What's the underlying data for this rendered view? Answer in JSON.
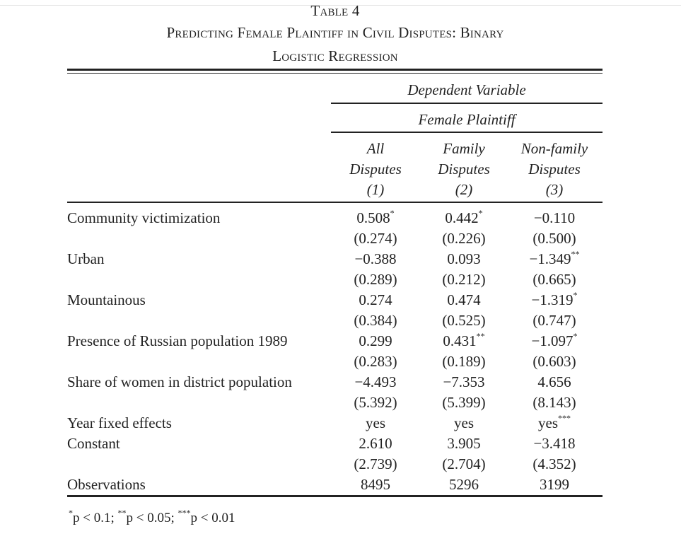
{
  "table": {
    "label": "Table 4",
    "title_line1": "Predicting Female Plaintiff in Civil Disputes: Binary",
    "title_line2": "Logistic Regression",
    "dependent_variable_label": "Dependent Variable",
    "dependent_variable": "Female Plaintiff",
    "columns": [
      {
        "line1": "All",
        "line2": "Disputes",
        "number": "(1)"
      },
      {
        "line1": "Family",
        "line2": "Disputes",
        "number": "(2)"
      },
      {
        "line1": "Non-family",
        "line2": "Disputes",
        "number": "(3)"
      }
    ],
    "rows": [
      {
        "label": "Community victimization",
        "coef": [
          {
            "v": "0.508",
            "stars": "*"
          },
          {
            "v": "0.442",
            "stars": "*"
          },
          {
            "v": "−0.110",
            "stars": ""
          }
        ],
        "se": [
          "(0.274)",
          "(0.226)",
          "(0.500)"
        ]
      },
      {
        "label": "Urban",
        "coef": [
          {
            "v": "−0.388",
            "stars": ""
          },
          {
            "v": "0.093",
            "stars": ""
          },
          {
            "v": "−1.349",
            "stars": "**"
          }
        ],
        "se": [
          "(0.289)",
          "(0.212)",
          "(0.665)"
        ]
      },
      {
        "label": "Mountainous",
        "coef": [
          {
            "v": "0.274",
            "stars": ""
          },
          {
            "v": "0.474",
            "stars": ""
          },
          {
            "v": "−1.319",
            "stars": "*"
          }
        ],
        "se": [
          "(0.384)",
          "(0.525)",
          "(0.747)"
        ]
      },
      {
        "label": "Presence of Russian population 1989",
        "coef": [
          {
            "v": "0.299",
            "stars": ""
          },
          {
            "v": "0.431",
            "stars": "**"
          },
          {
            "v": "−1.097",
            "stars": "*"
          }
        ],
        "se": [
          "(0.283)",
          "(0.189)",
          "(0.603)"
        ]
      },
      {
        "label": "Share of women in district population",
        "coef": [
          {
            "v": "−4.493",
            "stars": ""
          },
          {
            "v": "−7.353",
            "stars": ""
          },
          {
            "v": "4.656",
            "stars": ""
          }
        ],
        "se": [
          "(5.392)",
          "(5.399)",
          "(8.143)"
        ]
      },
      {
        "label": "Year fixed effects",
        "coef": [
          {
            "v": "yes",
            "stars": ""
          },
          {
            "v": "yes",
            "stars": ""
          },
          {
            "v": "yes",
            "stars": "***"
          }
        ],
        "se": []
      },
      {
        "label": "Constant",
        "coef": [
          {
            "v": "2.610",
            "stars": ""
          },
          {
            "v": "3.905",
            "stars": ""
          },
          {
            "v": "−3.418",
            "stars": ""
          }
        ],
        "se": [
          "(2.739)",
          "(2.704)",
          "(4.352)"
        ]
      },
      {
        "label": "Observations",
        "coef": [
          {
            "v": "8495",
            "stars": ""
          },
          {
            "v": "5296",
            "stars": ""
          },
          {
            "v": "3199",
            "stars": ""
          }
        ],
        "se": []
      }
    ],
    "footnote": [
      {
        "stars": "*",
        "text": "p < 0.1; "
      },
      {
        "stars": "**",
        "text": "p < 0.05; "
      },
      {
        "stars": "***",
        "text": "p < 0.01"
      }
    ]
  }
}
